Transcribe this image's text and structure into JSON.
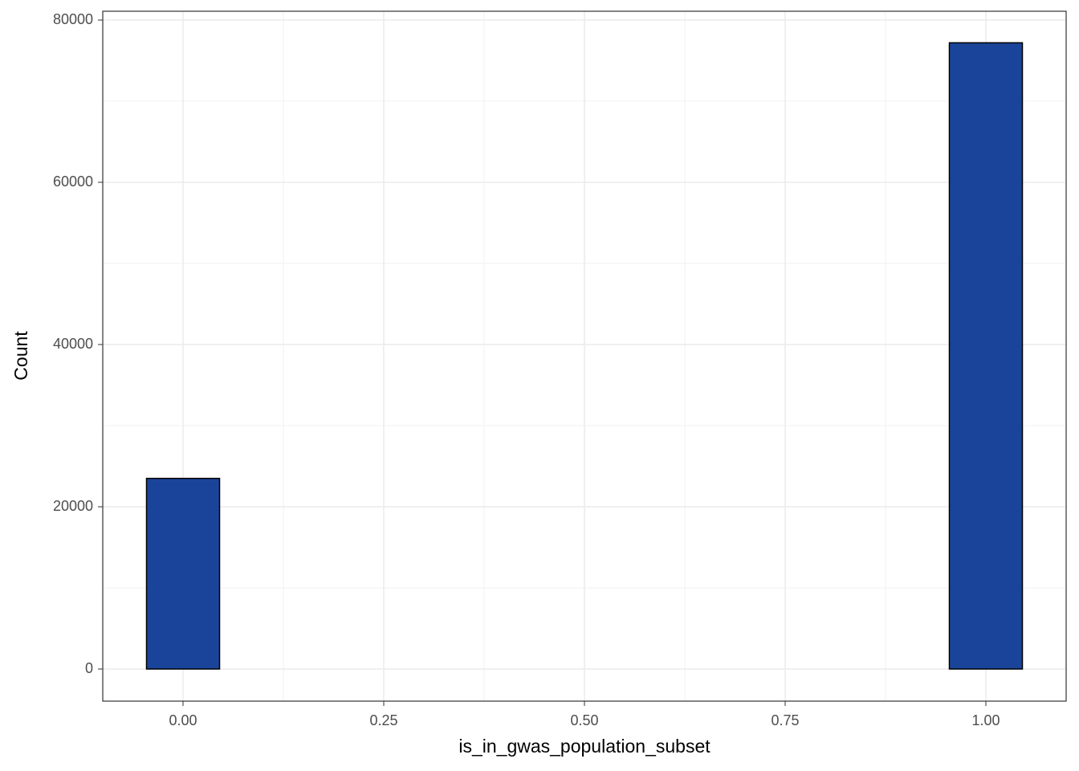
{
  "chart_data": {
    "type": "histogram",
    "x_label": "is_in_gwas_population_subset",
    "y_label": "Count",
    "bins": [
      -0.0455,
      0.0455,
      0.1364,
      0.2273,
      0.3182,
      0.4091,
      0.5,
      0.5909,
      0.6818,
      0.7727,
      0.8636,
      0.9545,
      1.0455
    ],
    "values": [
      23500,
      0,
      0,
      0,
      0,
      0,
      0,
      0,
      0,
      0,
      0,
      77200
    ],
    "color": "#1a4499",
    "edge_color": "#000000",
    "xlim": [
      -0.1,
      1.1
    ],
    "xticks": [
      {
        "value": 0,
        "label": "0.00"
      },
      {
        "value": 0.25,
        "label": "0.25"
      },
      {
        "value": 0.5,
        "label": "0.50"
      },
      {
        "value": 0.75,
        "label": "0.75"
      },
      {
        "value": 1,
        "label": "1.00"
      }
    ],
    "ylim": [
      -3960,
      81090
    ],
    "yticks": [
      0,
      20000,
      40000,
      60000,
      80000
    ],
    "grid": true
  }
}
